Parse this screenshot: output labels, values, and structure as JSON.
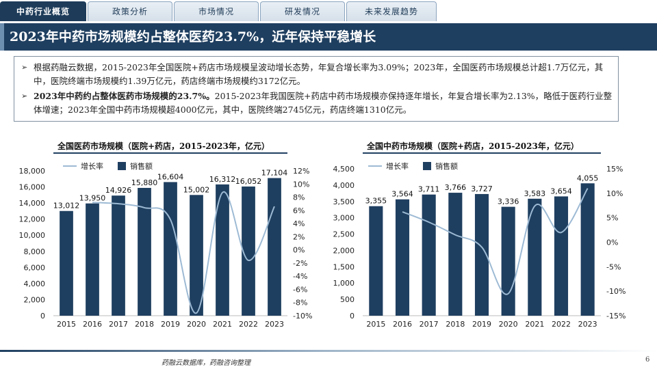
{
  "tabs": [
    {
      "label": "中药行业概览",
      "active": true
    },
    {
      "label": "政策分析",
      "active": false
    },
    {
      "label": "市场情况",
      "active": false
    },
    {
      "label": "研发情况",
      "active": false
    },
    {
      "label": "未来发展趋势",
      "active": false
    }
  ],
  "title": "2023年中药市场规模约占整体医药23.7%，近年保持平稳增长",
  "summary": [
    {
      "bold": "",
      "text": "根据药融云数据，2015-2023年全国医院+药店市场规模呈波动增长态势，年复合增长率为3.09%；2023年，全国医药市场规模总计超1.7万亿元，其中，医院终端市场规模约1.39万亿元，药店终端市场规模约3172亿元。"
    },
    {
      "bold": "2023年中药约占整体医药市场规模的23.7%。",
      "text": "2015-2023年我国医院+药店中药市场规模亦保持逐年增长，年复合增长率为2.13%，略低于医药行业整体增速；2023年全国中药市场规模超4000亿元，其中，医院终端2745亿元，药店终端1310亿元。"
    }
  ],
  "chart_data": [
    {
      "type": "bar",
      "title": "全国医药市场规模（医院+药店，2015-2023年，亿元）",
      "categories": [
        "2015",
        "2016",
        "2017",
        "2018",
        "2019",
        "2020",
        "2021",
        "2022",
        "2023"
      ],
      "series": [
        {
          "name": "销售额",
          "type": "bar",
          "axis": "left",
          "values": [
            13012,
            13950,
            14926,
            15880,
            16604,
            15002,
            16312,
            16052,
            17104
          ]
        },
        {
          "name": "增长率",
          "type": "line",
          "axis": "right",
          "values": [
            null,
            7.2,
            7.0,
            6.4,
            4.6,
            -9.6,
            8.7,
            -1.6,
            6.6
          ]
        }
      ],
      "data_labels": [
        "13,012",
        "13,950",
        "14,926",
        "15,880",
        "16,604",
        "15,002",
        "16,312",
        "16,052",
        "17,104"
      ],
      "left_ticks": [
        "18,000",
        "16,000",
        "14,000",
        "12,000",
        "10,000",
        "8,000",
        "6,000",
        "4,000",
        "2,000",
        "0"
      ],
      "right_ticks": [
        "12%",
        "10%",
        "8%",
        "6%",
        "4%",
        "2%",
        "0%",
        "-2%",
        "-4%",
        "-6%",
        "-8%",
        "-10%"
      ],
      "ylim": [
        0,
        18000
      ],
      "y2lim": [
        -10,
        12
      ],
      "legend": "top-left",
      "colors": {
        "bar": "#1f3f60",
        "line": "#9dbad4"
      }
    },
    {
      "type": "bar",
      "title": "全国中药市场规模（医院+药店，2015-2023年，亿元）",
      "categories": [
        "2015",
        "2016",
        "2017",
        "2018",
        "2019",
        "2020",
        "2021",
        "2022",
        "2023"
      ],
      "series": [
        {
          "name": "销售额",
          "type": "bar",
          "axis": "left",
          "values": [
            3355,
            3564,
            3711,
            3766,
            3727,
            3336,
            3583,
            3654,
            4055
          ]
        },
        {
          "name": "增长率",
          "type": "line",
          "axis": "right",
          "values": [
            null,
            6.2,
            4.1,
            1.5,
            -1.0,
            -10.5,
            7.4,
            2.0,
            11.0
          ]
        }
      ],
      "data_labels": [
        "3,355",
        "3,564",
        "3,711",
        "3,766",
        "3,727",
        "3,336",
        "3,583",
        "3,654",
        "4,055"
      ],
      "left_ticks": [
        "4,500",
        "4,000",
        "3,500",
        "3,000",
        "2,500",
        "2,000",
        "1,500",
        "1,000",
        "500",
        "0"
      ],
      "right_ticks": [
        "15%",
        "10%",
        "5%",
        "0%",
        "-5%",
        "-10%",
        "-15%"
      ],
      "ylim": [
        0,
        4500
      ],
      "y2lim": [
        -15,
        15
      ],
      "legend": "top-left",
      "colors": {
        "bar": "#1f3f60",
        "line": "#9dbad4"
      }
    }
  ],
  "footer": {
    "source": "药融云数据库，药融咨询整理",
    "page": "6"
  }
}
